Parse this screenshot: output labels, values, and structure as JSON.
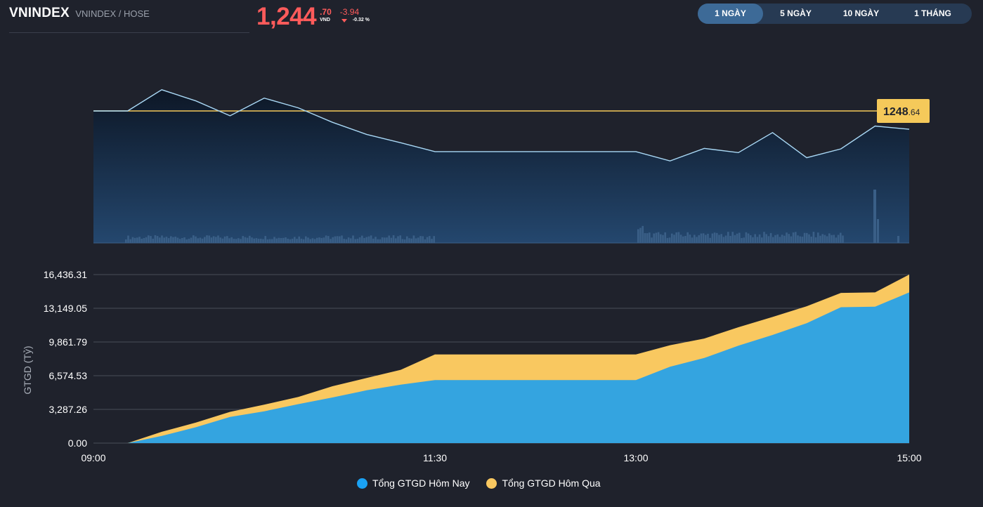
{
  "header": {
    "symbol": "VNINDEX",
    "subtitle": "VNINDEX / HOSE",
    "price_main": "1,244",
    "price_decimal": ".70",
    "price_unit": "VND",
    "change": "-3.94",
    "change_pct": "-0.32 %"
  },
  "tabs": [
    {
      "label": "1 NGÀY",
      "active": true
    },
    {
      "label": "5 NGÀY",
      "active": false
    },
    {
      "label": "10 NGÀY",
      "active": false
    },
    {
      "label": "1 THÁNG",
      "active": false
    }
  ],
  "colors": {
    "price_down": "#ff5b5b",
    "price_line": "#a9d8f5",
    "reference_line": "#f5c95a",
    "today_area": "#34a4e0",
    "yesterday_area": "#f9c860",
    "legend_today": "#1aa2f4"
  },
  "reference_label": {
    "int": "1248",
    "dec": ".64"
  },
  "chart_data": [
    {
      "type": "line",
      "x": [
        "09:00",
        "09:15",
        "09:30",
        "09:45",
        "10:00",
        "10:15",
        "10:30",
        "10:45",
        "11:00",
        "11:15",
        "11:30",
        "13:00",
        "13:15",
        "13:30",
        "13:45",
        "14:00",
        "14:15",
        "14:30",
        "14:45",
        "15:00"
      ],
      "series": [
        {
          "values": [
            1248.64,
            1248.64,
            1253.2,
            1250.8,
            1247.6,
            1251.4,
            1249.3,
            1246.2,
            1243.6,
            1241.8,
            1239.9,
            1239.9,
            1237.9,
            1240.6,
            1239.7,
            1244.0,
            1238.6,
            1240.5,
            1245.4,
            1244.7
          ]
        }
      ],
      "reference": 1248.64,
      "volume_bars": true
    },
    {
      "type": "area",
      "x": [
        "09:00",
        "09:15",
        "09:30",
        "09:45",
        "10:00",
        "10:15",
        "10:30",
        "10:45",
        "11:00",
        "11:15",
        "11:30",
        "13:00",
        "13:15",
        "13:30",
        "13:45",
        "14:00",
        "14:15",
        "14:30",
        "14:45",
        "15:00"
      ],
      "series": [
        {
          "name": "Tổng GTGD Hôm Nay",
          "values": [
            0,
            0,
            700,
            1550,
            2550,
            3100,
            3800,
            4450,
            5150,
            5700,
            6150,
            6150,
            7450,
            8300,
            9500,
            10550,
            11700,
            13250,
            13300,
            14700
          ]
        },
        {
          "name": "Tổng GTGD Hôm Qua",
          "values": [
            0,
            0,
            1100,
            2000,
            3050,
            3750,
            4500,
            5550,
            6350,
            7150,
            8650,
            8650,
            9550,
            10200,
            11300,
            12300,
            13350,
            14650,
            14700,
            16436.31
          ]
        }
      ],
      "ylabel": "GTGD (Tỷ)",
      "y_ticks": [
        "0.00",
        "3,287.26",
        "6,574.53",
        "9,861.79",
        "13,149.05",
        "16,436.31"
      ],
      "x_ticks": [
        "09:00",
        "11:30",
        "13:00",
        "15:00"
      ],
      "ylim": [
        0,
        16436.31
      ]
    }
  ]
}
